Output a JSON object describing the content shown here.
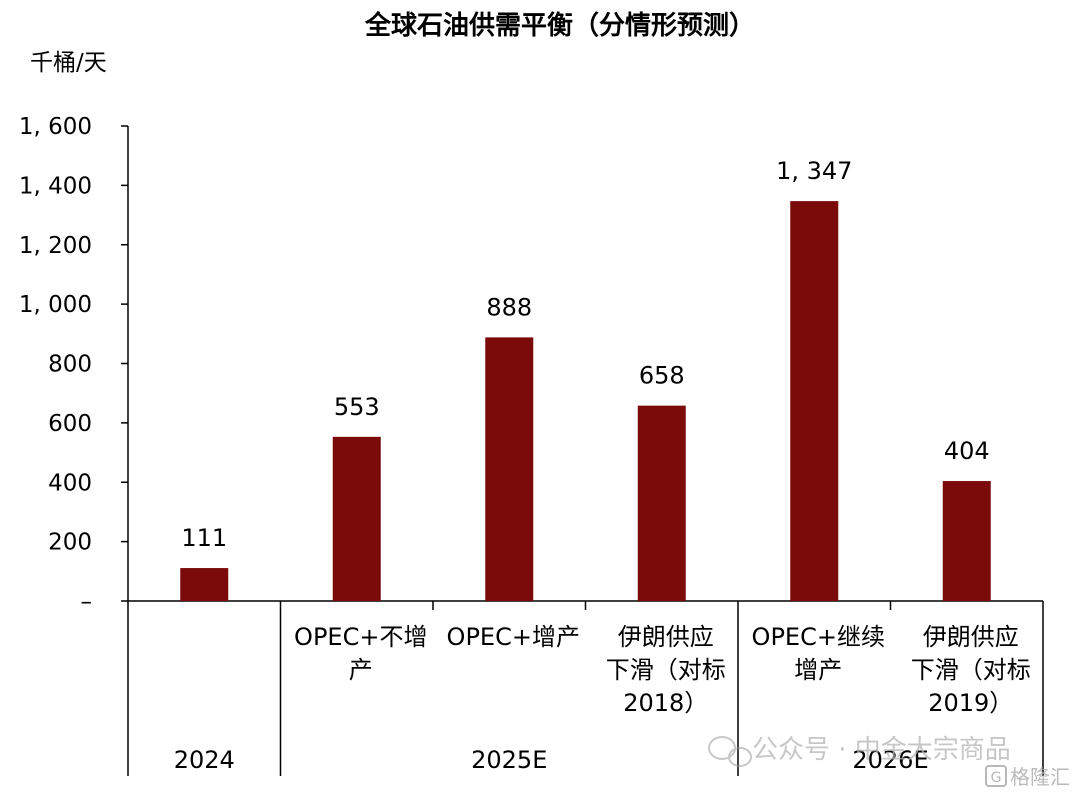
{
  "chart_data": {
    "type": "bar",
    "title": "全球石油供需平衡（分情形预测）",
    "unit_label": "千桶/天",
    "ylim": [
      0,
      1600
    ],
    "y_ticks": [
      {
        "value": 0,
        "label": "–"
      },
      {
        "value": 200,
        "label": "200"
      },
      {
        "value": 400,
        "label": "400"
      },
      {
        "value": 600,
        "label": "600"
      },
      {
        "value": 800,
        "label": "800"
      },
      {
        "value": 1000,
        "label": "1, 000"
      },
      {
        "value": 1200,
        "label": "1, 200"
      },
      {
        "value": 1400,
        "label": "1, 400"
      },
      {
        "value": 1600,
        "label": "1, 600"
      }
    ],
    "bar_color": "#7b0a0a",
    "categories": [
      {
        "lines": [],
        "value": 111,
        "label": "111"
      },
      {
        "lines": [
          "OPEC+不增",
          "产"
        ],
        "value": 553,
        "label": "553"
      },
      {
        "lines": [
          "OPEC+增产"
        ],
        "value": 888,
        "label": "888"
      },
      {
        "lines": [
          "伊朗供应",
          "下滑（对标",
          "2018）"
        ],
        "value": 658,
        "label": "658"
      },
      {
        "lines": [
          "OPEC+继续",
          "增产"
        ],
        "value": 1347,
        "label": "1, 347"
      },
      {
        "lines": [
          "伊朗供应",
          "下滑（对标",
          "2019）"
        ],
        "value": 404,
        "label": "404"
      }
    ],
    "groups": [
      {
        "label": "2024",
        "span": [
          0,
          0
        ]
      },
      {
        "label": "2025E",
        "span": [
          1,
          3
        ]
      },
      {
        "label": "2026E",
        "span": [
          4,
          5
        ]
      }
    ]
  },
  "watermark": {
    "wechat_text": "公众号 · 中金大宗商品",
    "brand_text": "格隆汇"
  }
}
